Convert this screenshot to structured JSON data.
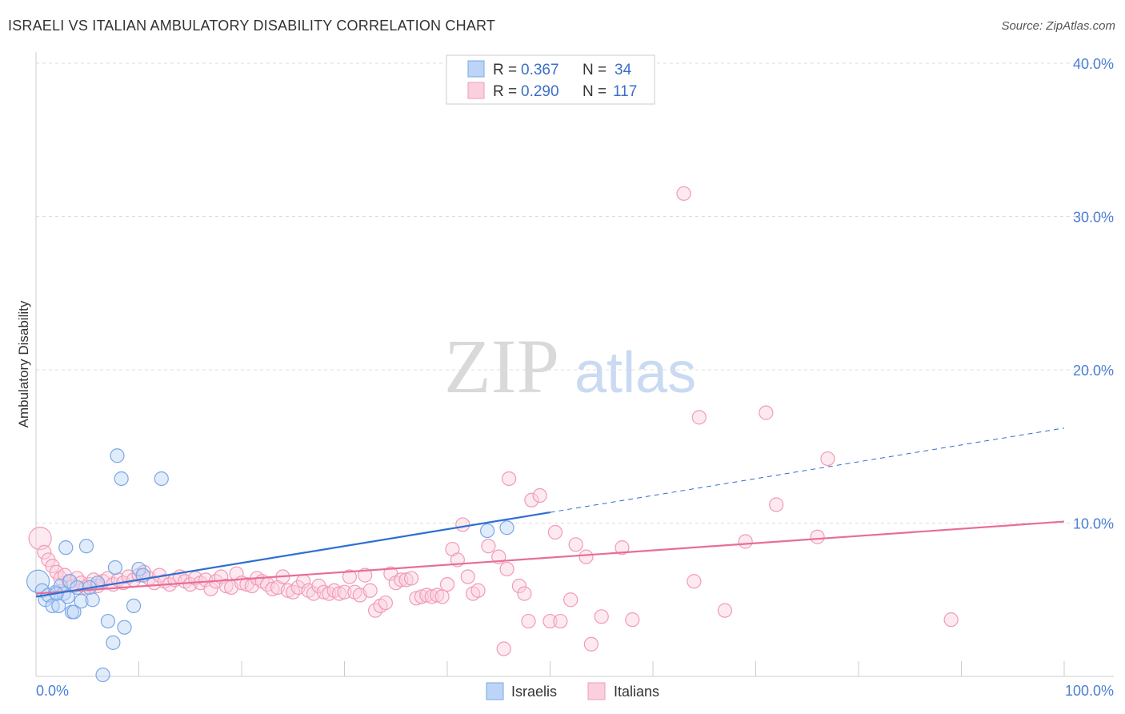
{
  "title": "ISRAELI VS ITALIAN AMBULATORY DISABILITY CORRELATION CHART",
  "source": "Source: ZipAtlas.com",
  "watermark": {
    "zip": "ZIP",
    "atlas": "atlas"
  },
  "legend": {
    "israelis": {
      "r_label": "R = ",
      "r_value": "0.367",
      "n_label": "N = ",
      "n_value": "34"
    },
    "italians": {
      "r_label": "R = ",
      "r_value": "0.290",
      "n_label": "N = ",
      "n_value": "117"
    }
  },
  "bottom_legend": {
    "israelis": "Israelis",
    "italians": "Italians"
  },
  "chart_data": {
    "type": "scatter",
    "title": "ISRAELI VS ITALIAN AMBULATORY DISABILITY CORRELATION CHART",
    "xlabel": "",
    "ylabel": "Ambulatory Disability",
    "xlim": [
      0,
      100
    ],
    "ylim": [
      0,
      40
    ],
    "x_tick_labels": [
      "0.0%",
      "100.0%"
    ],
    "y_ticks": [
      10,
      20,
      30,
      40
    ],
    "y_tick_labels": [
      "10.0%",
      "20.0%",
      "30.0%",
      "40.0%"
    ],
    "colors": {
      "israelis": "#7aa7e8",
      "italians": "#f19ab8",
      "israelis_line": "#2f6fd0",
      "italians_line": "#e86d98",
      "tick": "#4a7fd4"
    },
    "series": [
      {
        "name": "Israelis",
        "points": [
          [
            0.2,
            6.2
          ],
          [
            0.6,
            5.6
          ],
          [
            0.9,
            5.0
          ],
          [
            1.2,
            5.3
          ],
          [
            1.6,
            4.6
          ],
          [
            1.9,
            5.5
          ],
          [
            2.2,
            4.6
          ],
          [
            2.4,
            5.9
          ],
          [
            2.7,
            5.4
          ],
          [
            2.9,
            8.4
          ],
          [
            3.1,
            5.2
          ],
          [
            3.3,
            6.2
          ],
          [
            3.5,
            4.2
          ],
          [
            3.7,
            4.2
          ],
          [
            4.0,
            5.8
          ],
          [
            4.4,
            4.9
          ],
          [
            4.9,
            8.5
          ],
          [
            5.5,
            5.0
          ],
          [
            6.0,
            6.1
          ],
          [
            7.0,
            3.6
          ],
          [
            7.5,
            2.2
          ],
          [
            7.7,
            7.1
          ],
          [
            7.9,
            14.4
          ],
          [
            8.3,
            12.9
          ],
          [
            8.6,
            3.2
          ],
          [
            9.5,
            4.6
          ],
          [
            10.0,
            7.0
          ],
          [
            10.4,
            6.6
          ],
          [
            6.5,
            0.1
          ],
          [
            12.2,
            12.9
          ],
          [
            5.2,
            5.8
          ],
          [
            2.0,
            5.4
          ],
          [
            43.9,
            9.5
          ],
          [
            45.8,
            9.7
          ]
        ],
        "trend": {
          "x": [
            0,
            50
          ],
          "y": [
            5.2,
            10.7
          ],
          "extended": {
            "x": [
              50,
              100
            ],
            "y": [
              10.7,
              16.2
            ]
          }
        }
      },
      {
        "name": "Italians",
        "points": [
          [
            0.4,
            9.0
          ],
          [
            0.8,
            8.1
          ],
          [
            1.2,
            7.6
          ],
          [
            1.6,
            7.2
          ],
          [
            2.0,
            6.8
          ],
          [
            2.4,
            6.4
          ],
          [
            2.8,
            6.6
          ],
          [
            3.2,
            6.2
          ],
          [
            3.6,
            5.9
          ],
          [
            4.0,
            6.4
          ],
          [
            4.4,
            6.1
          ],
          [
            4.8,
            5.8
          ],
          [
            5.2,
            6.0
          ],
          [
            5.6,
            6.3
          ],
          [
            6.0,
            5.9
          ],
          [
            6.5,
            6.2
          ],
          [
            7.0,
            6.4
          ],
          [
            7.5,
            6.0
          ],
          [
            8.0,
            6.3
          ],
          [
            8.5,
            6.1
          ],
          [
            9.0,
            6.5
          ],
          [
            9.5,
            6.3
          ],
          [
            10.0,
            6.6
          ],
          [
            10.5,
            6.8
          ],
          [
            11.0,
            6.4
          ],
          [
            11.5,
            6.1
          ],
          [
            12.0,
            6.6
          ],
          [
            12.5,
            6.2
          ],
          [
            13.0,
            6.0
          ],
          [
            13.5,
            6.3
          ],
          [
            14.0,
            6.5
          ],
          [
            14.5,
            6.2
          ],
          [
            15.0,
            6.0
          ],
          [
            15.5,
            6.4
          ],
          [
            16.0,
            6.1
          ],
          [
            16.5,
            6.3
          ],
          [
            17.0,
            5.7
          ],
          [
            17.5,
            6.2
          ],
          [
            18.0,
            6.5
          ],
          [
            18.5,
            5.9
          ],
          [
            19.0,
            5.8
          ],
          [
            19.5,
            6.7
          ],
          [
            20.0,
            6.1
          ],
          [
            20.5,
            6.0
          ],
          [
            21.0,
            5.9
          ],
          [
            21.5,
            6.4
          ],
          [
            22.0,
            6.2
          ],
          [
            22.5,
            6.0
          ],
          [
            23.0,
            5.7
          ],
          [
            23.5,
            5.8
          ],
          [
            24.0,
            6.5
          ],
          [
            24.5,
            5.6
          ],
          [
            25.0,
            5.5
          ],
          [
            25.5,
            5.8
          ],
          [
            26.0,
            6.2
          ],
          [
            26.5,
            5.6
          ],
          [
            27.0,
            5.4
          ],
          [
            27.5,
            5.9
          ],
          [
            28.0,
            5.5
          ],
          [
            28.5,
            5.4
          ],
          [
            29.0,
            5.6
          ],
          [
            29.5,
            5.4
          ],
          [
            30.0,
            5.5
          ],
          [
            30.5,
            6.5
          ],
          [
            31.0,
            5.5
          ],
          [
            31.5,
            5.3
          ],
          [
            32.0,
            6.6
          ],
          [
            32.5,
            5.6
          ],
          [
            33.0,
            4.3
          ],
          [
            33.5,
            4.6
          ],
          [
            34.0,
            4.8
          ],
          [
            34.5,
            6.7
          ],
          [
            35.0,
            6.1
          ],
          [
            35.5,
            6.3
          ],
          [
            36.0,
            6.3
          ],
          [
            36.5,
            6.4
          ],
          [
            37.0,
            5.1
          ],
          [
            37.5,
            5.2
          ],
          [
            38.0,
            5.3
          ],
          [
            38.5,
            5.2
          ],
          [
            39.0,
            5.3
          ],
          [
            39.5,
            5.2
          ],
          [
            40.0,
            6.0
          ],
          [
            40.5,
            8.3
          ],
          [
            41.0,
            7.6
          ],
          [
            41.5,
            9.9
          ],
          [
            42.0,
            6.5
          ],
          [
            42.5,
            5.4
          ],
          [
            43.0,
            5.6
          ],
          [
            44.0,
            8.5
          ],
          [
            45.0,
            7.8
          ],
          [
            45.5,
            1.8
          ],
          [
            45.8,
            7.0
          ],
          [
            46.0,
            12.9
          ],
          [
            47.0,
            5.9
          ],
          [
            47.5,
            5.4
          ],
          [
            47.9,
            3.6
          ],
          [
            48.2,
            11.5
          ],
          [
            49.0,
            11.8
          ],
          [
            50.0,
            3.6
          ],
          [
            50.5,
            9.4
          ],
          [
            51.0,
            3.6
          ],
          [
            52.0,
            5.0
          ],
          [
            52.5,
            8.6
          ],
          [
            53.5,
            7.8
          ],
          [
            54.0,
            2.1
          ],
          [
            55.0,
            3.9
          ],
          [
            57.0,
            8.4
          ],
          [
            58.0,
            3.7
          ],
          [
            63.0,
            31.5
          ],
          [
            64.0,
            6.2
          ],
          [
            64.5,
            16.9
          ],
          [
            67.0,
            4.3
          ],
          [
            69.0,
            8.8
          ],
          [
            71.0,
            17.2
          ],
          [
            72.0,
            11.2
          ],
          [
            76.0,
            9.1
          ],
          [
            77.0,
            14.2
          ],
          [
            89.0,
            3.7
          ]
        ],
        "trend": {
          "x": [
            0,
            100
          ],
          "y": [
            5.4,
            10.1
          ]
        }
      }
    ]
  }
}
